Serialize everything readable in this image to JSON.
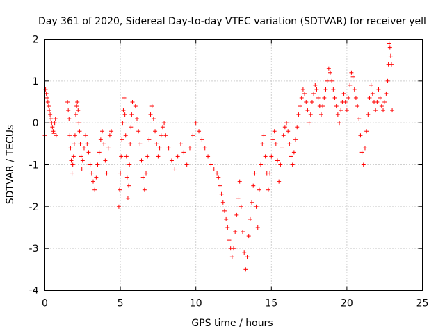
{
  "chart_data": {
    "type": "scatter",
    "title": "Day 361 of 2020, Sidereal Day-to-day VTEC variation (SDTVAR) for receiver yell",
    "xlabel": "GPS time / hours",
    "ylabel": "SDTVAR / TECUs",
    "xlim": [
      0,
      25
    ],
    "ylim": [
      -4,
      2
    ],
    "xticks": [
      0,
      5,
      10,
      15,
      20,
      25
    ],
    "yticks": [
      -4,
      -3,
      -2,
      -1,
      0,
      1,
      2
    ],
    "xtick_labels": [
      "0",
      "5",
      "10",
      "15",
      "20",
      "25"
    ],
    "ytick_labels": [
      "-4",
      "-3",
      "-2",
      "-1",
      "0",
      "1",
      "2"
    ],
    "grid": true,
    "marker": "+",
    "color": "#ff0000",
    "series": [
      {
        "name": "SDTVAR",
        "x": [
          0.0,
          0.05,
          0.1,
          0.15,
          0.2,
          0.25,
          0.3,
          0.35,
          0.4,
          0.45,
          0.5,
          0.55,
          0.6,
          0.65,
          0.7,
          0.75,
          1.5,
          1.55,
          1.6,
          1.65,
          1.7,
          1.75,
          1.8,
          1.85,
          1.9,
          1.95,
          2.0,
          2.05,
          2.1,
          2.15,
          2.2,
          2.25,
          2.3,
          2.35,
          2.4,
          2.45,
          2.5,
          2.6,
          2.7,
          2.8,
          2.9,
          3.0,
          3.1,
          3.2,
          3.3,
          3.4,
          3.5,
          3.6,
          3.7,
          3.8,
          3.9,
          4.0,
          4.1,
          4.2,
          4.3,
          4.4,
          4.9,
          4.95,
          5.0,
          5.05,
          5.1,
          5.15,
          5.2,
          5.25,
          5.3,
          5.35,
          5.4,
          5.45,
          5.5,
          5.55,
          5.6,
          5.65,
          5.7,
          5.75,
          5.8,
          6.0,
          6.1,
          6.2,
          6.3,
          6.4,
          6.5,
          6.6,
          6.7,
          6.8,
          6.9,
          7.0,
          7.1,
          7.2,
          7.3,
          7.4,
          7.5,
          7.6,
          7.7,
          7.8,
          7.9,
          8.0,
          8.2,
          8.4,
          8.6,
          8.8,
          9.0,
          9.2,
          9.4,
          9.6,
          9.8,
          10.0,
          10.2,
          10.4,
          10.6,
          10.8,
          11.0,
          11.2,
          11.4,
          11.5,
          11.6,
          11.7,
          11.8,
          11.9,
          12.0,
          12.1,
          12.2,
          12.3,
          12.4,
          12.5,
          12.6,
          12.7,
          12.8,
          12.9,
          13.0,
          13.1,
          13.2,
          13.3,
          13.4,
          13.5,
          13.6,
          13.7,
          13.8,
          13.9,
          14.0,
          14.1,
          14.2,
          14.3,
          14.4,
          14.5,
          14.6,
          14.7,
          14.8,
          14.9,
          15.0,
          15.1,
          15.2,
          15.3,
          15.4,
          15.5,
          15.6,
          15.7,
          15.8,
          15.9,
          16.0,
          16.1,
          16.2,
          16.3,
          16.4,
          16.5,
          16.6,
          16.7,
          16.8,
          16.9,
          17.0,
          17.1,
          17.2,
          17.3,
          17.4,
          17.5,
          17.6,
          17.7,
          17.8,
          17.9,
          18.0,
          18.1,
          18.2,
          18.3,
          18.4,
          18.5,
          18.6,
          18.7,
          18.8,
          18.9,
          19.0,
          19.1,
          19.2,
          19.3,
          19.4,
          19.5,
          19.6,
          19.7,
          19.8,
          19.9,
          20.0,
          20.1,
          20.2,
          20.3,
          20.4,
          20.5,
          20.6,
          20.7,
          20.8,
          20.9,
          21.0,
          21.1,
          21.2,
          21.3,
          21.4,
          21.5,
          21.6,
          21.7,
          21.8,
          21.9,
          22.0,
          22.1,
          22.2,
          22.3,
          22.4,
          22.5,
          22.6,
          22.7,
          22.75,
          22.8,
          22.85,
          22.9,
          22.95,
          23.0
        ],
        "y": [
          -0.3,
          0.8,
          0.7,
          0.6,
          0.5,
          0.4,
          0.3,
          0.2,
          0.1,
          0.0,
          -0.1,
          -0.2,
          -0.25,
          0.0,
          0.1,
          -0.3,
          0.5,
          0.3,
          0.1,
          -0.3,
          -0.6,
          -0.9,
          -1.2,
          -1.0,
          -0.8,
          -0.5,
          -0.3,
          0.2,
          0.4,
          0.5,
          0.3,
          0.0,
          -0.2,
          -0.5,
          -0.8,
          -1.1,
          -0.9,
          -0.6,
          -0.3,
          -0.5,
          -0.7,
          -1.0,
          -1.2,
          -1.4,
          -1.6,
          -1.3,
          -1.0,
          -0.7,
          -0.4,
          -0.2,
          -0.5,
          -0.9,
          -1.2,
          -0.6,
          -0.3,
          -0.2,
          -2.0,
          -1.6,
          -1.2,
          -0.8,
          -0.4,
          0.0,
          0.3,
          0.6,
          0.2,
          -0.3,
          -0.8,
          -1.3,
          -1.8,
          -1.5,
          -1.0,
          -0.5,
          -0.1,
          0.2,
          0.5,
          0.4,
          0.1,
          -0.2,
          -0.5,
          -0.9,
          -1.3,
          -1.6,
          -1.2,
          -0.8,
          -0.4,
          0.2,
          0.4,
          0.1,
          -0.2,
          -0.5,
          -0.8,
          -0.6,
          -0.3,
          -0.1,
          0.0,
          -0.3,
          -0.6,
          -0.9,
          -1.1,
          -0.8,
          -0.5,
          -0.7,
          -1.0,
          -0.6,
          -0.3,
          0.0,
          -0.2,
          -0.4,
          -0.6,
          -0.8,
          -1.0,
          -1.1,
          -1.2,
          -1.3,
          -1.5,
          -1.7,
          -1.9,
          -2.1,
          -2.3,
          -2.5,
          -2.8,
          -3.0,
          -3.2,
          -3.0,
          -2.6,
          -2.2,
          -1.8,
          -1.4,
          -2.0,
          -2.6,
          -3.1,
          -3.5,
          -3.2,
          -2.7,
          -2.3,
          -1.9,
          -1.5,
          -1.2,
          -2.0,
          -2.5,
          -1.6,
          -1.0,
          -0.5,
          -0.3,
          -0.8,
          -1.2,
          -1.6,
          -1.2,
          -0.8,
          -0.4,
          -0.2,
          -0.5,
          -0.9,
          -1.4,
          -1.0,
          -0.6,
          -0.3,
          -0.1,
          0.0,
          -0.2,
          -0.5,
          -0.8,
          -1.0,
          -0.7,
          -0.4,
          -0.1,
          0.2,
          0.4,
          0.6,
          0.8,
          0.7,
          0.5,
          0.3,
          0.0,
          0.2,
          0.5,
          0.7,
          0.9,
          0.8,
          0.6,
          0.4,
          0.2,
          0.4,
          0.6,
          0.8,
          1.0,
          1.3,
          1.2,
          1.0,
          0.8,
          0.6,
          0.4,
          0.2,
          0.0,
          0.3,
          0.5,
          0.7,
          0.5,
          0.3,
          0.6,
          0.9,
          1.2,
          1.1,
          0.8,
          0.6,
          0.4,
          0.1,
          -0.3,
          -0.7,
          -1.0,
          -0.6,
          -0.2,
          0.2,
          0.6,
          0.9,
          0.7,
          0.5,
          0.3,
          0.5,
          0.8,
          0.6,
          0.4,
          0.3,
          0.5,
          0.7,
          1.0,
          1.4,
          1.9,
          1.8,
          1.6,
          1.4,
          0.3
        ]
      }
    ]
  }
}
